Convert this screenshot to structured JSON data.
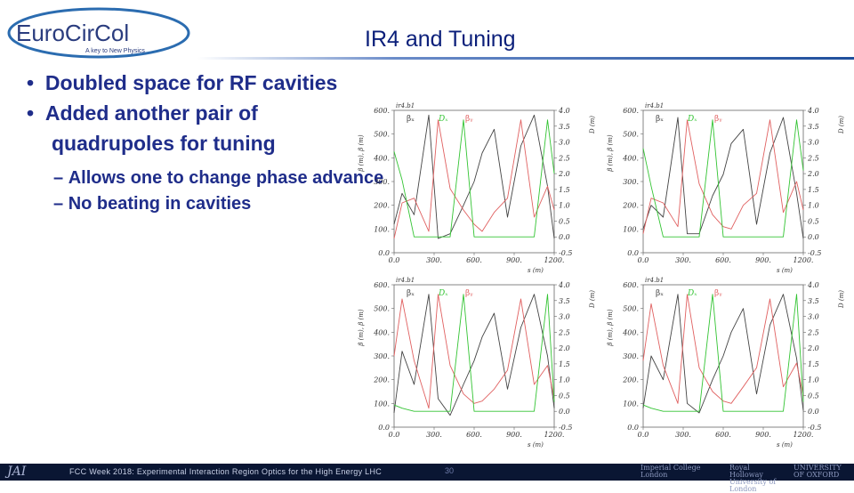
{
  "logo": {
    "text": "EuroCirCol",
    "tagline": "A key to New Physics"
  },
  "title": "IR4 and Tuning",
  "bullets": [
    "Doubled space for RF cavities",
    "Added another pair of quadrupoles for tuning"
  ],
  "sub_bullets": [
    "Allows one to change phase advance",
    "No beating in cavities"
  ],
  "plot_labels": {
    "beamline": "ir4.b1",
    "beta_x": "βₓ",
    "beta_y": "βᵧ",
    "dispersion": "Dₓ",
    "left_axis": "β (m), β (m)",
    "right_axis": "D (m)",
    "x_axis": "s (m)"
  },
  "axis_ticks": {
    "left": [
      "600.",
      "500.",
      "400.",
      "300.",
      "200.",
      "100.",
      "0.0"
    ],
    "right": [
      "4.0",
      "3.5",
      "3.0",
      "2.5",
      "2.0",
      "1.5",
      "1.0",
      "0.5",
      "0.0",
      "-0.5"
    ],
    "bottom": [
      "0.0",
      "300.",
      "600.",
      "900.",
      "1200."
    ]
  },
  "chart_data": [
    {
      "type": "line",
      "x": [
        0,
        60,
        150,
        260,
        330,
        420,
        520,
        600,
        660,
        750,
        850,
        950,
        1050,
        1150,
        1200
      ],
      "series": [
        {
          "values": [
            120,
            250,
            160,
            580,
            60,
            80,
            200,
            300,
            420,
            520,
            150,
            450,
            580,
            280,
            60
          ]
        },
        {
          "values": [
            60,
            210,
            230,
            90,
            560,
            270,
            180,
            120,
            90,
            170,
            230,
            560,
            150,
            280,
            180
          ]
        },
        {
          "values": [
            2.7,
            1.8,
            0.0,
            0.0,
            0.0,
            0.0,
            3.7,
            0.0,
            0.0,
            0.0,
            0.0,
            0.0,
            0.0,
            3.7,
            2.0
          ]
        }
      ]
    },
    {
      "type": "line",
      "x": [
        0,
        60,
        150,
        260,
        330,
        420,
        520,
        600,
        660,
        750,
        850,
        950,
        1050,
        1150,
        1200
      ],
      "series": [
        {
          "values": [
            100,
            200,
            150,
            570,
            80,
            80,
            240,
            330,
            460,
            520,
            120,
            420,
            570,
            250,
            60
          ]
        },
        {
          "values": [
            80,
            230,
            210,
            110,
            560,
            290,
            160,
            110,
            100,
            200,
            250,
            560,
            170,
            300,
            180
          ]
        },
        {
          "values": [
            2.8,
            1.6,
            0.0,
            0.0,
            0.0,
            0.0,
            3.7,
            0.0,
            0.0,
            0.0,
            0.0,
            0.0,
            0.0,
            3.7,
            2.1
          ]
        }
      ]
    },
    {
      "type": "line",
      "x": [
        0,
        60,
        150,
        260,
        330,
        420,
        520,
        600,
        660,
        750,
        850,
        950,
        1050,
        1150,
        1200
      ],
      "series": [
        {
          "values": [
            60,
            320,
            180,
            560,
            120,
            50,
            180,
            280,
            380,
            480,
            160,
            420,
            560,
            300,
            80
          ]
        },
        {
          "values": [
            300,
            540,
            280,
            80,
            560,
            260,
            140,
            100,
            110,
            160,
            240,
            540,
            180,
            260,
            120
          ]
        },
        {
          "values": [
            0.2,
            0.1,
            0.0,
            0.0,
            0.0,
            0.0,
            3.7,
            0.0,
            0.0,
            0.0,
            0.0,
            0.0,
            0.0,
            3.7,
            0.3
          ]
        }
      ]
    },
    {
      "type": "line",
      "x": [
        0,
        60,
        150,
        260,
        330,
        420,
        520,
        600,
        660,
        750,
        850,
        950,
        1050,
        1150,
        1200
      ],
      "series": [
        {
          "values": [
            80,
            300,
            200,
            560,
            100,
            60,
            200,
            300,
            400,
            500,
            140,
            430,
            560,
            290,
            70
          ]
        },
        {
          "values": [
            280,
            520,
            260,
            100,
            560,
            250,
            150,
            110,
            100,
            170,
            250,
            540,
            170,
            270,
            130
          ]
        },
        {
          "values": [
            0.2,
            0.1,
            0.0,
            0.0,
            0.0,
            0.0,
            3.7,
            0.0,
            0.0,
            0.0,
            0.0,
            0.0,
            0.0,
            3.7,
            0.3
          ]
        }
      ]
    }
  ],
  "footer": {
    "left_logo": "JAI",
    "text": "FCC Week 2018: Experimental Interaction Region Optics for the High Energy LHC",
    "page_number": "30",
    "partners": [
      "Imperial College London",
      "Royal Holloway University of London",
      "UNIVERSITY OF OXFORD"
    ]
  },
  "colors": {
    "beta_x": "#444444",
    "beta_y": "#e06060",
    "dispersion": "#33c433",
    "title": "#0b1f7a",
    "text": "#1f2d8a"
  }
}
